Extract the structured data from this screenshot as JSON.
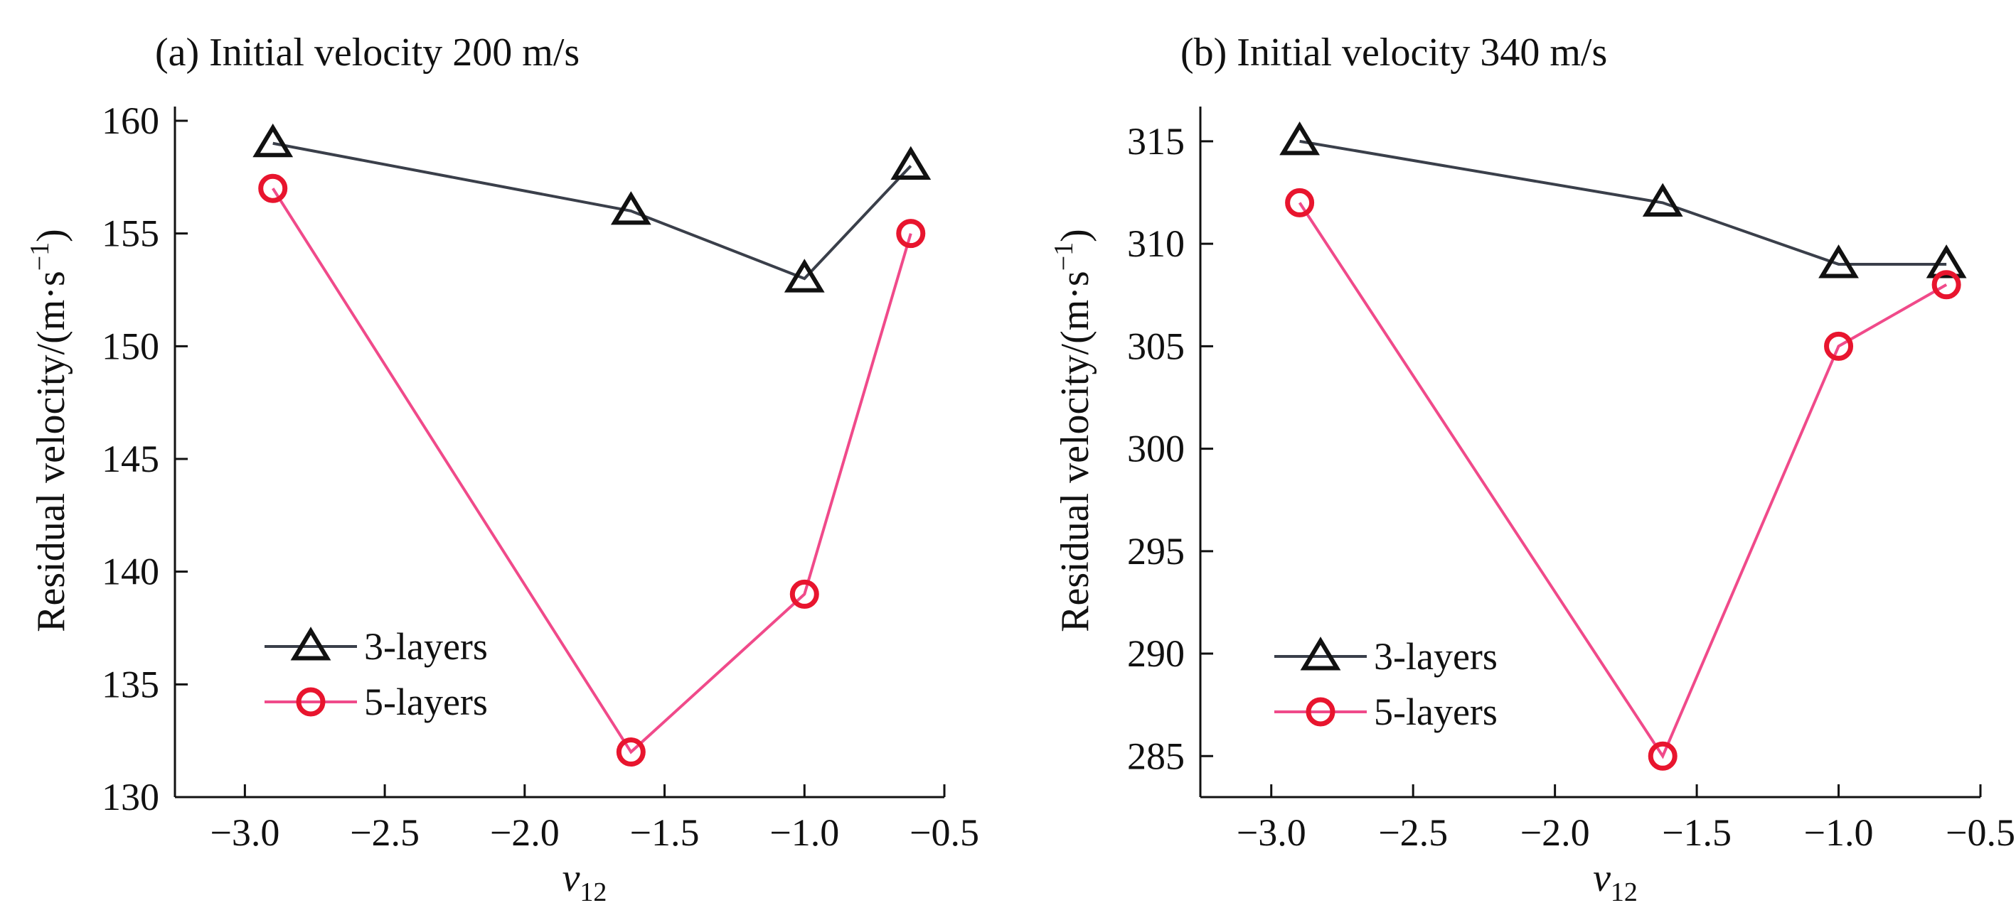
{
  "chart_data": [
    {
      "type": "line",
      "title": "(a) Initial velocity 200 m/s",
      "xlabel_main": "v",
      "xlabel_sub": "12",
      "ylabel": "Residual velocity/(m·s",
      "ylabel_sup": "−1",
      "ylabel_close": ")",
      "xlim": [
        -3.25,
        -0.5
      ],
      "ylim": [
        130,
        160
      ],
      "xticks": [
        -3.0,
        -2.5,
        -2.0,
        -1.5,
        -1.0,
        -0.5
      ],
      "xtick_labels": [
        "−3.0",
        "−2.5",
        "−2.0",
        "−1.5",
        "−1.0",
        "−0.5"
      ],
      "yticks": [
        130,
        135,
        140,
        145,
        150,
        155,
        160
      ],
      "ytick_labels": [
        "130",
        "135",
        "140",
        "145",
        "150",
        "155",
        "160"
      ],
      "legend_position": "bottom-left",
      "series": [
        {
          "name": "3-layers",
          "marker": "triangle",
          "color": "#3a3f4a",
          "markerColor": "#111111",
          "x": [
            -2.9,
            -1.62,
            -1.0,
            -0.62
          ],
          "y": [
            159,
            156,
            153,
            158
          ]
        },
        {
          "name": "5-layers",
          "marker": "circle",
          "color": "#f04a8a",
          "markerColor": "#e8152e",
          "x": [
            -2.9,
            -1.62,
            -1.0,
            -0.62
          ],
          "y": [
            157,
            132,
            139,
            155
          ]
        }
      ]
    },
    {
      "type": "line",
      "title": "(b) Initial velocity 340 m/s",
      "xlabel_main": "v",
      "xlabel_sub": "12",
      "ylabel": "Residual velocity/(m·s",
      "ylabel_sup": "−1",
      "ylabel_close": ")",
      "xlim": [
        -3.25,
        -0.5
      ],
      "ylim": [
        283,
        316
      ],
      "xticks": [
        -3.0,
        -2.5,
        -2.0,
        -1.5,
        -1.0,
        -0.5
      ],
      "xtick_labels": [
        "−3.0",
        "−2.5",
        "−2.0",
        "−1.5",
        "−1.0",
        "−0.5"
      ],
      "yticks": [
        285,
        290,
        295,
        300,
        305,
        310,
        315
      ],
      "ytick_labels": [
        "285",
        "290",
        "295",
        "300",
        "305",
        "310",
        "315"
      ],
      "legend_position": "bottom-left",
      "series": [
        {
          "name": "3-layers",
          "marker": "triangle",
          "color": "#3a3f4a",
          "markerColor": "#111111",
          "x": [
            -2.9,
            -1.62,
            -1.0,
            -0.62
          ],
          "y": [
            315,
            312,
            309,
            309
          ]
        },
        {
          "name": "5-layers",
          "marker": "circle",
          "color": "#f04a8a",
          "markerColor": "#e8152e",
          "x": [
            -2.9,
            -1.62,
            -1.0,
            -0.62
          ],
          "y": [
            312,
            285,
            305,
            308
          ]
        }
      ]
    }
  ]
}
